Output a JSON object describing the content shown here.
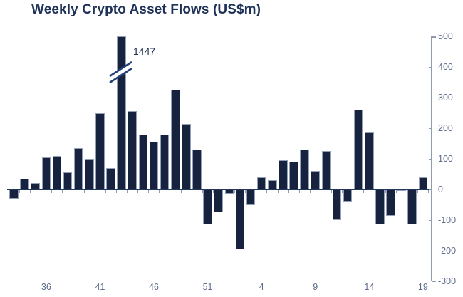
{
  "page": {
    "background": "#ffffff"
  },
  "chart_data": {
    "type": "bar",
    "title": "Weekly Crypto Asset Flows (US$m)",
    "unit": "US$m",
    "categories": [
      33,
      34,
      35,
      36,
      37,
      38,
      39,
      40,
      41,
      42,
      43,
      44,
      45,
      46,
      47,
      48,
      49,
      50,
      51,
      52,
      1,
      2,
      3,
      4,
      5,
      6,
      7,
      8,
      9,
      10,
      11,
      12,
      13,
      14,
      15,
      16,
      17,
      18,
      19
    ],
    "values": [
      -30,
      35,
      20,
      105,
      110,
      55,
      135,
      100,
      250,
      70,
      1447,
      255,
      180,
      155,
      180,
      325,
      215,
      130,
      -115,
      -75,
      -15,
      -195,
      -50,
      40,
      30,
      95,
      90,
      130,
      60,
      125,
      -100,
      -40,
      260,
      185,
      -115,
      -85,
      -5,
      -115,
      40
    ],
    "x_axis": {
      "label_weeks": [
        "36",
        "41",
        "46",
        "51",
        "4",
        "9",
        "14",
        "19"
      ]
    },
    "y_axis": {
      "ticks": [
        500,
        400,
        300,
        200,
        100,
        0,
        -100,
        -200,
        -300
      ],
      "min": -300,
      "max": 500,
      "position": "right"
    },
    "clip_display_max": 500,
    "axis_break": true,
    "peak_annotation": {
      "text": "1447",
      "week": 43
    },
    "legend": null,
    "grid": false,
    "colors": {
      "bar": "#17233e",
      "bar_border": "#94a0b8",
      "title": "#1e3157",
      "axis_line": "#8f9bb2",
      "tick_label": "#5e6d8d",
      "baseline": "#24365a",
      "break_mark": "#21407a",
      "annotation": "#1c2c50"
    }
  }
}
